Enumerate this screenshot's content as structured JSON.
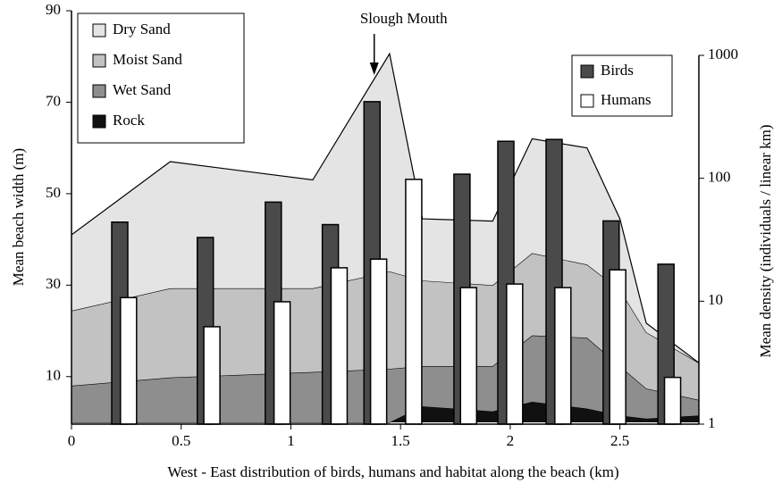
{
  "chart_data": {
    "type": "combo",
    "xlabel": "West - East distribution of birds, humans and habitat along the beach (km)",
    "ylabel": "Mean beach width (m)",
    "y2label": "Mean density (individuals / linear km)",
    "annotation": "Slough Mouth",
    "annotation_x": 1.38,
    "x": [
      0,
      0.45,
      1.1,
      1.45,
      1.6,
      1.92,
      2.1,
      2.35,
      2.5,
      2.62,
      2.86
    ],
    "xlim": [
      0,
      2.86
    ],
    "xticks": [
      0,
      0.5,
      1,
      1.5,
      2,
      2.5
    ],
    "ylim": [
      0,
      90
    ],
    "yticks": [
      10,
      30,
      50,
      70,
      90
    ],
    "y2lim": [
      1,
      1000
    ],
    "y2ticks": [
      1,
      10,
      100,
      1000
    ],
    "y2log": true,
    "series": [
      {
        "name": "Dry Sand",
        "type": "area",
        "color": "#e4e4e4",
        "values": [
          16.6,
          27.7,
          23.7,
          47.6,
          13.5,
          14,
          25,
          25.5,
          15.5,
          2,
          0
        ]
      },
      {
        "name": "Moist Sand",
        "type": "area",
        "color": "#c2c2c2",
        "values": [
          16.4,
          19.5,
          18.3,
          21.3,
          18.7,
          17.7,
          18,
          16,
          16.7,
          12.3,
          8.1
        ]
      },
      {
        "name": "Wet Sand",
        "type": "area",
        "color": "#8e8e8e",
        "values": [
          8,
          9.8,
          11,
          11.7,
          8.8,
          9.9,
          14.5,
          15.5,
          10.8,
          6.6,
          3.4
        ]
      },
      {
        "name": "Rock",
        "type": "area",
        "color": "#111111",
        "values": [
          0,
          0,
          0,
          0,
          3.5,
          2.4,
          4.5,
          3,
          1.5,
          0.8,
          1.5
        ]
      },
      {
        "name": "Birds",
        "type": "bar",
        "axis": "y2",
        "color": "#4a4a4a",
        "x": [
          0.22,
          0.61,
          0.92,
          1.18,
          1.37,
          1.78,
          1.98,
          2.2,
          2.46,
          2.71
        ],
        "values": [
          44,
          33,
          64,
          42,
          420,
          108,
          200,
          207,
          45,
          20
        ]
      },
      {
        "name": "Humans",
        "type": "bar",
        "axis": "y2",
        "color": "#ffffff",
        "x": [
          0.26,
          0.64,
          0.96,
          1.22,
          1.4,
          1.56,
          1.81,
          2.02,
          2.24,
          2.49,
          2.74
        ],
        "values": [
          10.7,
          6.2,
          9.9,
          18.7,
          22,
          98,
          12.9,
          13.8,
          12.9,
          18,
          2.4
        ]
      }
    ]
  }
}
